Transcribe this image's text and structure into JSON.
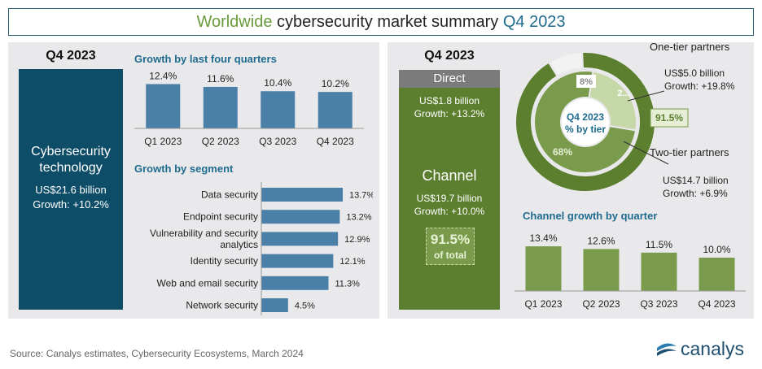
{
  "header": {
    "title_part1": "Worldwide",
    "title_part2": " cybersecurity market summary ",
    "title_part3": "Q4 2023"
  },
  "left": {
    "quarter": "Q4 2023",
    "box_title": "Cybersecurity technology",
    "box_value": "US$21.6 billion",
    "box_growth": "Growth: +10.2%",
    "quarters_title": "Growth by last four quarters",
    "segment_title": "Growth by segment"
  },
  "right": {
    "quarter": "Q4 2023",
    "direct_label": "Direct",
    "direct_value": "US$1.8 billion",
    "direct_growth": "Growth: +13.2%",
    "channel_label": "Channel",
    "channel_value": "US$19.7 billion",
    "channel_growth": "Growth: +10.0%",
    "channel_pct": "91.5%",
    "channel_pct_sub": "of total",
    "one_tier_label": "One-tier partners",
    "one_tier_value": "US$5.0 billion",
    "one_tier_growth": "Growth: +19.8%",
    "two_tier_label": "Two-tier partners",
    "two_tier_value": "US$14.7 billion",
    "two_tier_growth": "Growth: +6.9%",
    "donut_center_line1": "Q4 2023",
    "donut_center_line2": "% by tier",
    "donut_callout": "91.5%",
    "channel_growth_title": "Channel growth by quarter"
  },
  "footer": {
    "source": "Source: Canalys estimates, Cybersecurity Ecosystems, March 2024",
    "brand": "canalys"
  },
  "colors": {
    "navy": "#0e4d68",
    "steel_bar": "#4a7fa8",
    "green_dark": "#5b7f2e",
    "green_bar": "#7a9b4c",
    "title_green": "#6a9a3c",
    "title_blue": "#1f6b8f"
  },
  "chart_data": [
    {
      "type": "bar",
      "title": "Growth by last four quarters",
      "categories": [
        "Q1 2023",
        "Q2 2023",
        "Q3 2023",
        "Q4 2023"
      ],
      "values": [
        12.4,
        11.6,
        10.4,
        10.2
      ],
      "labels": [
        "12.4%",
        "11.6%",
        "10.4%",
        "10.2%"
      ]
    },
    {
      "type": "bar",
      "orientation": "horizontal",
      "title": "Growth by segment",
      "categories": [
        "Data security",
        "Endpoint security",
        "Vulnerability and security analytics",
        "Identity security",
        "Web and email security",
        "Network security"
      ],
      "category_lines": [
        [
          "Data security"
        ],
        [
          "Endpoint security"
        ],
        [
          "Vulnerability and security",
          "analytics"
        ],
        [
          "Identity security"
        ],
        [
          "Web and email security"
        ],
        [
          "Network security"
        ]
      ],
      "values": [
        13.7,
        13.2,
        12.9,
        12.1,
        11.3,
        4.5
      ],
      "labels": [
        "13.7%",
        "13.2%",
        "12.9%",
        "12.1%",
        "11.3%",
        "4.5%"
      ]
    },
    {
      "type": "pie",
      "title": "% by tier",
      "rings": [
        {
          "name": "outer",
          "values": [
            8,
            91.5
          ],
          "labels": [
            "8%",
            ""
          ]
        },
        {
          "name": "inner",
          "values": [
            23,
            68
          ],
          "labels": [
            "2...",
            "68%"
          ]
        }
      ]
    },
    {
      "type": "bar",
      "title": "Channel growth by quarter",
      "categories": [
        "Q1 2023",
        "Q2 2023",
        "Q3 2023",
        "Q4 2023"
      ],
      "values": [
        13.4,
        12.6,
        11.5,
        10.0
      ],
      "labels": [
        "13.4%",
        "12.6%",
        "11.5%",
        "10.0%"
      ]
    }
  ]
}
